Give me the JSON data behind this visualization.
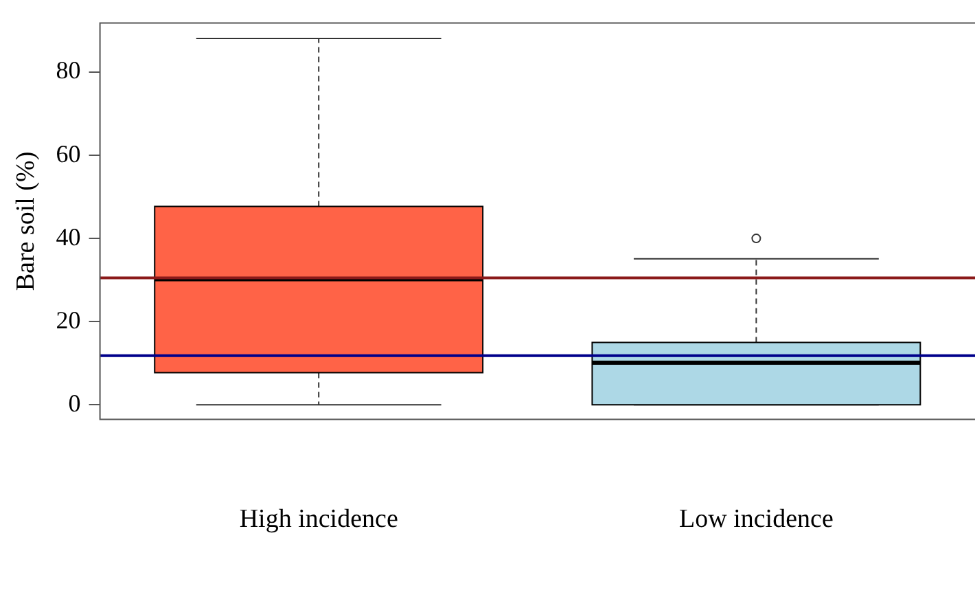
{
  "chart_data": {
    "type": "box",
    "ylabel": "Bare soil (%)",
    "categories": [
      "High incidence",
      "Low incidence"
    ],
    "boxes": [
      {
        "low": 0,
        "q1": 7.7,
        "median": 30.2,
        "q3": 47.7,
        "high": 88.1
      },
      {
        "low": 0,
        "q1": 0,
        "median": 10.1,
        "q3": 15.0,
        "high": 35.1,
        "outliers": [
          40.0
        ]
      }
    ],
    "colors": [
      "#ff6347",
      "#add8e6"
    ],
    "ylim": [
      -3.5,
      91.8
    ],
    "yticks": [
      0,
      20,
      40,
      60,
      80
    ],
    "grid": false,
    "legend": false,
    "ref_lines": [
      {
        "axis": "y",
        "value": 30.5,
        "color": "#8b1a1a"
      },
      {
        "axis": "y",
        "value": 11.8,
        "color": "#00008b"
      }
    ]
  }
}
